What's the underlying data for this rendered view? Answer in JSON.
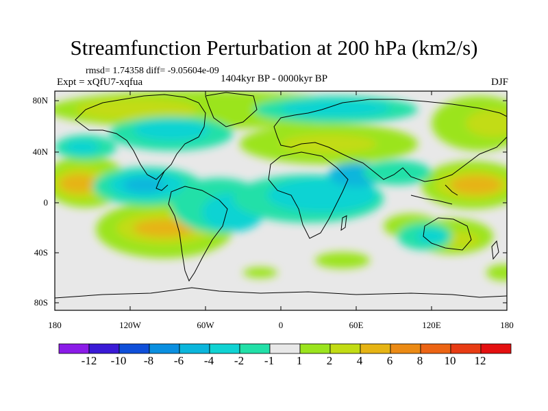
{
  "title": "Streamfunction Perturbation at 200 hPa (km2/s)",
  "stats_line": "rmsd= 1.74358 diff= -9.05604e-09",
  "expt_line": "Expt = xQfU7-xqfua",
  "period_line": "1404kyr BP - 0000kyr BP",
  "season": "DJF",
  "lat_labels": [
    "80N",
    "40N",
    "0",
    "40S",
    "80S"
  ],
  "lon_labels": [
    "180",
    "120W",
    "60W",
    "0",
    "60E",
    "120E",
    "180"
  ],
  "colorbar": {
    "labels": [
      "-12",
      "-10",
      "-8",
      "-6",
      "-4",
      "-2",
      "-1",
      "1",
      "2",
      "4",
      "6",
      "8",
      "10",
      "12"
    ],
    "colors": [
      "#8b1be8",
      "#3a1ad6",
      "#0f4fd9",
      "#0a8fe0",
      "#0bb6dc",
      "#10d3d3",
      "#22e0a8",
      "#e8e8e8",
      "#9be41e",
      "#c2dc14",
      "#e6b414",
      "#eb8a14",
      "#ec6414",
      "#e83c14",
      "#e41010"
    ]
  }
}
